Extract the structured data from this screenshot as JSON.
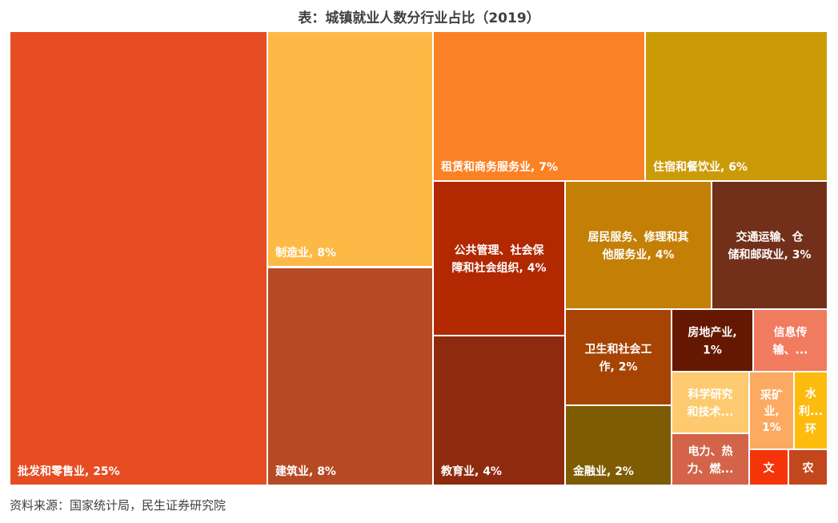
{
  "title": "表：城镇就业人数分行业占比（2019）",
  "source": "资料来源：国家统计局，民生证券研究院",
  "chart_data": {
    "type": "treemap",
    "tiles": [
      {
        "name": "批发和零售业",
        "value": 25,
        "label_lines": [
          "批发和零售业, 25%"
        ],
        "color": "#E64D22"
      },
      {
        "name": "制造业",
        "value": 8,
        "label_lines": [
          "制造业, 8%"
        ],
        "color": "#FDB945"
      },
      {
        "name": "建筑业",
        "value": 8,
        "label_lines": [
          "建筑业, 8%"
        ],
        "color": "#B64A24"
      },
      {
        "name": "租赁和商务服务业",
        "value": 7,
        "label_lines": [
          "租赁和商务服务业, 7%"
        ],
        "color": "#FB8124"
      },
      {
        "name": "住宿和餐饮业",
        "value": 6,
        "label_lines": [
          "住宿和餐饮业, 6%"
        ],
        "color": "#CB9B07"
      },
      {
        "name": "公共管理、社会保障和社会组织",
        "value": 4,
        "label_lines": [
          "公共管理、社会保",
          "障和社会组织, 4%"
        ],
        "color": "#B12801"
      },
      {
        "name": "教育业",
        "value": 4,
        "label_lines": [
          "教育业, 4%"
        ],
        "color": "#8E2B0F"
      },
      {
        "name": "居民服务、修理和其他服务业",
        "value": 4,
        "label_lines": [
          "居民服务、修理和其",
          "他服务业, 4%"
        ],
        "color": "#C47F06"
      },
      {
        "name": "交通运输、仓储和邮政业",
        "value": 3,
        "label_lines": [
          "交通运输、仓",
          "储和邮政业, 3%"
        ],
        "color": "#722F1A"
      },
      {
        "name": "卫生和社会工作",
        "value": 2,
        "label_lines": [
          "卫生和社会工",
          "作, 2%"
        ],
        "color": "#A74303"
      },
      {
        "name": "金融业",
        "value": 2,
        "label_lines": [
          "金融业, 2%"
        ],
        "color": "#7E5C03"
      },
      {
        "name": "房地产业",
        "value": 1,
        "label_lines": [
          "房地产业,",
          "1%"
        ],
        "color": "#651801"
      },
      {
        "name": "信息传输、…",
        "value": null,
        "label_lines": [
          "信息传",
          "输、..."
        ],
        "color": "#F07B5E"
      },
      {
        "name": "科学研究和技术…",
        "value": null,
        "label_lines": [
          "科学研究",
          "和技术..."
        ],
        "color": "#FDCA6F"
      },
      {
        "name": "采矿业",
        "value": 1,
        "label_lines": [
          "采矿",
          "业,",
          "1%"
        ],
        "color": "#FCAA62"
      },
      {
        "name": "水利、环…",
        "value": null,
        "label_lines": [
          "水",
          "利...",
          "环"
        ],
        "color": "#FDBC0D"
      },
      {
        "name": "电力、热力、燃…",
        "value": null,
        "label_lines": [
          "电力、热",
          "力、燃..."
        ],
        "color": "#D3644A"
      },
      {
        "name": "文",
        "value": null,
        "label_lines": [
          "文"
        ],
        "color": "#F63409"
      },
      {
        "name": "农",
        "value": null,
        "label_lines": [
          "农"
        ],
        "color": "#C3471D"
      }
    ]
  }
}
